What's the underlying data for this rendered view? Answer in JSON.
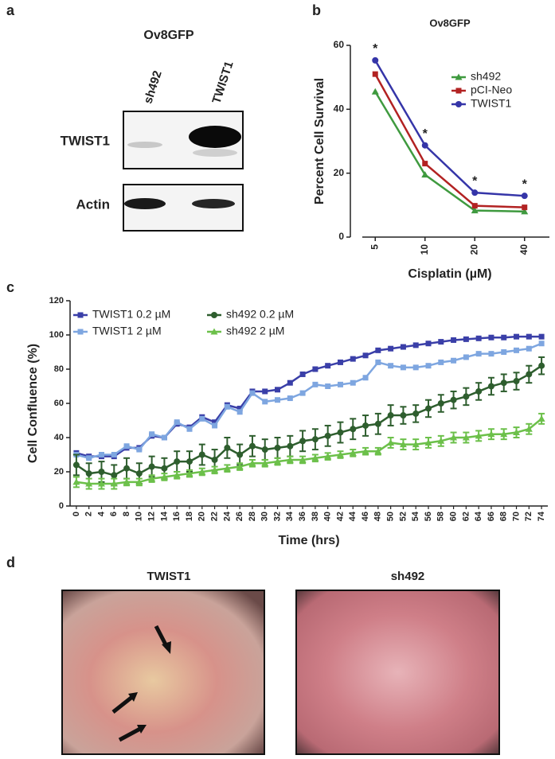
{
  "panel_labels": [
    "a",
    "b",
    "c",
    "d"
  ],
  "blot": {
    "title": "Ov8GFP",
    "lanes": [
      "sh492",
      "TWIST1"
    ],
    "rows": [
      "TWIST1",
      "Actin"
    ]
  },
  "photos": {
    "titles": [
      "TWIST1",
      "sh492"
    ]
  },
  "chart_data": [
    {
      "type": "line",
      "title": "Ov8GFP",
      "xlabel": "Cisplatin (µM)",
      "ylabel": "Percent Cell Survival",
      "categories": [
        "5",
        "10",
        "20",
        "40"
      ],
      "series": [
        {
          "name": "sh492",
          "color": "#3f9a3f",
          "marker": "triangle",
          "values": [
            45.5,
            19.5,
            8.3,
            8.0
          ]
        },
        {
          "name": "pCI-Neo",
          "color": "#b22222",
          "marker": "square",
          "values": [
            51,
            23,
            9.8,
            9.3
          ]
        },
        {
          "name": "TWIST1",
          "color": "#3535a8",
          "marker": "circle",
          "values": [
            55.3,
            28.7,
            13.9,
            12.9
          ]
        }
      ],
      "annotations": [
        "*",
        "*",
        "*",
        "*"
      ],
      "ylim": [
        0,
        60
      ],
      "yticks": [
        0,
        20,
        40,
        60
      ]
    },
    {
      "type": "line",
      "xlabel": "Time (hrs)",
      "ylabel": "Cell Confluence (%)",
      "x": [
        0,
        2,
        4,
        6,
        8,
        10,
        12,
        14,
        16,
        18,
        20,
        22,
        24,
        26,
        28,
        30,
        32,
        34,
        36,
        38,
        40,
        42,
        44,
        46,
        48,
        50,
        52,
        54,
        56,
        58,
        60,
        62,
        64,
        66,
        68,
        70,
        72,
        74
      ],
      "xlim": [
        -1,
        75
      ],
      "xticks": [
        0,
        2,
        4,
        6,
        8,
        10,
        12,
        14,
        16,
        18,
        20,
        22,
        24,
        26,
        28,
        30,
        32,
        34,
        36,
        38,
        40,
        42,
        44,
        46,
        48,
        50,
        52,
        54,
        56,
        58,
        60,
        62,
        64,
        66,
        68,
        70,
        72,
        74
      ],
      "ylim": [
        0,
        120
      ],
      "yticks": [
        0,
        20,
        40,
        60,
        80,
        100,
        120
      ],
      "series": [
        {
          "name": "TWIST1 0.2 µM",
          "color": "#3a3fa8",
          "marker": "square",
          "values": [
            31,
            29,
            29,
            29,
            34,
            34,
            41,
            40,
            48,
            46,
            52,
            49,
            59,
            57,
            67,
            67,
            68,
            72,
            77,
            80,
            82,
            84,
            86,
            88,
            91,
            92,
            93,
            94,
            95,
            96,
            97,
            97.5,
            98,
            98.5,
            98.5,
            99,
            99,
            99
          ]
        },
        {
          "name": "TWIST1 2 µM",
          "color": "#7ea6e0",
          "marker": "square",
          "values": [
            30,
            28,
            30,
            30,
            35,
            33,
            42,
            40,
            49,
            45,
            51,
            47,
            58,
            55,
            66,
            61,
            62,
            63,
            66,
            71,
            70,
            71,
            72,
            75,
            84,
            82,
            81,
            81,
            82,
            84,
            85,
            87,
            89,
            89,
            90,
            91,
            92,
            95
          ]
        },
        {
          "name": "sh492 0.2 µM",
          "color": "#2e5e2e",
          "marker": "circle",
          "values": [
            24,
            19,
            20,
            18,
            22,
            19,
            23,
            22,
            26,
            26,
            30,
            27,
            34,
            30,
            35,
            33,
            34,
            35,
            38,
            39,
            41,
            43,
            45,
            47,
            48,
            53,
            53,
            54,
            57,
            60,
            62,
            64,
            67,
            70,
            72,
            73,
            77,
            82
          ],
          "errors": [
            6,
            6,
            6,
            6,
            6,
            6,
            6,
            6,
            6,
            6,
            6,
            6,
            6,
            6,
            6,
            6,
            6,
            6,
            6,
            6,
            6,
            6,
            6,
            6,
            6,
            6,
            5,
            5,
            5,
            5,
            5,
            5,
            5,
            5,
            5,
            5,
            5,
            5
          ]
        },
        {
          "name": "sh492 2 µM",
          "color": "#6cc04a",
          "marker": "triangle",
          "values": [
            14,
            13,
            13,
            13,
            14,
            14,
            16,
            17,
            18,
            19,
            20,
            21,
            22,
            23,
            25,
            25,
            26,
            27,
            27,
            28,
            29,
            30,
            31,
            32,
            32,
            37,
            36,
            36,
            37,
            38,
            40,
            40,
            41,
            42,
            42,
            43,
            45,
            51
          ],
          "errors": [
            3,
            3,
            3,
            3,
            2,
            2,
            2,
            2,
            2,
            2,
            2,
            2,
            2,
            2,
            2,
            2,
            2,
            2,
            2,
            2,
            2,
            2,
            2,
            2,
            2,
            3,
            3,
            3,
            3,
            3,
            3,
            3,
            3,
            3,
            3,
            3,
            3,
            3
          ]
        }
      ]
    }
  ]
}
